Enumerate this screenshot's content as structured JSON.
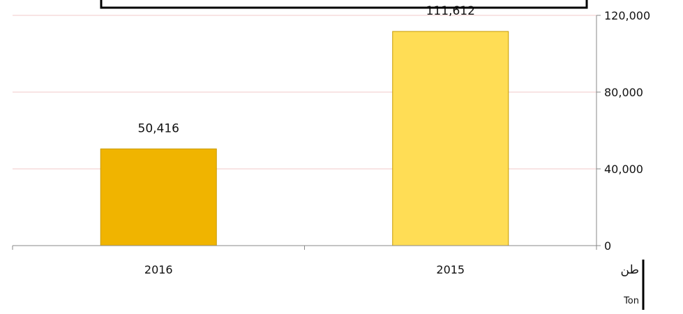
{
  "chart_data": {
    "type": "bar",
    "title": "",
    "xlabel": "",
    "ylabel": "",
    "categories": [
      "2016",
      "2015"
    ],
    "values": [
      50416,
      111612
    ],
    "value_labels": [
      "50,416",
      "111,612"
    ],
    "ylim": [
      0,
      120000
    ],
    "yticks": [
      0,
      40000,
      80000,
      120000
    ],
    "ytick_labels": [
      "0",
      "40,000",
      "80,000",
      "120,000"
    ],
    "y_axis_side": "right",
    "grid": true,
    "legend": false,
    "unit_label_ar": "طن",
    "unit_label_en": "Ton",
    "colors": {
      "bar_2016": "#f0b400",
      "bar_2015": "#ffdd55",
      "gridline": "#f2c9c9",
      "axis": "#888888"
    }
  }
}
